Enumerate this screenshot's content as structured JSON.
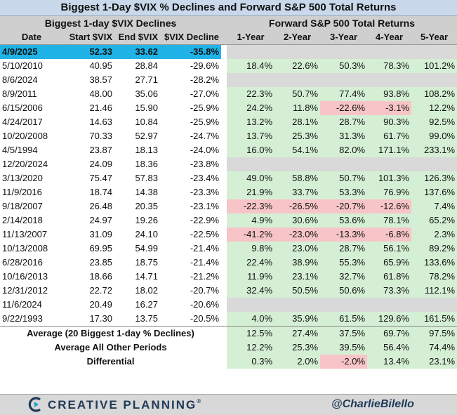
{
  "title": "Biggest 1-Day $VIX % Declines and Forward S&P 500 Total Returns",
  "left_header": "Biggest 1-day $VIX Declines",
  "right_header": "Forward S&P 500 Total Returns",
  "columns": [
    "Date",
    "Start $VIX",
    "End $VIX",
    "$VIX Decline",
    "1-Year",
    "2-Year",
    "3-Year",
    "4-Year",
    "5-Year"
  ],
  "colors": {
    "highlight": "#1fb3e8",
    "positive": "#d5efd4",
    "negative": "#f7c5c7",
    "empty": "#d9d9d9",
    "header": "#cfcfcf",
    "title_bg": "#c9d9eb",
    "brand": "#1f3a57"
  },
  "chart_data": {
    "type": "table",
    "title": "Biggest 1-Day $VIX % Declines and Forward S&P 500 Total Returns",
    "rows": [
      {
        "date": "4/9/2025",
        "start": "52.33",
        "end": "33.62",
        "decline": "-35.8%",
        "highlight": true,
        "returns": [
          "",
          "",
          "",
          "",
          ""
        ]
      },
      {
        "date": "5/10/2010",
        "start": "40.95",
        "end": "28.84",
        "decline": "-29.6%",
        "returns": [
          "18.4%",
          "22.6%",
          "50.3%",
          "78.3%",
          "101.2%"
        ]
      },
      {
        "date": "8/6/2024",
        "start": "38.57",
        "end": "27.71",
        "decline": "-28.2%",
        "returns": [
          "",
          "",
          "",
          "",
          ""
        ]
      },
      {
        "date": "8/9/2011",
        "start": "48.00",
        "end": "35.06",
        "decline": "-27.0%",
        "returns": [
          "22.3%",
          "50.7%",
          "77.4%",
          "93.8%",
          "108.2%"
        ]
      },
      {
        "date": "6/15/2006",
        "start": "21.46",
        "end": "15.90",
        "decline": "-25.9%",
        "returns": [
          "24.2%",
          "11.8%",
          "-22.6%",
          "-3.1%",
          "12.2%"
        ]
      },
      {
        "date": "4/24/2017",
        "start": "14.63",
        "end": "10.84",
        "decline": "-25.9%",
        "returns": [
          "13.2%",
          "28.1%",
          "28.7%",
          "90.3%",
          "92.5%"
        ]
      },
      {
        "date": "10/20/2008",
        "start": "70.33",
        "end": "52.97",
        "decline": "-24.7%",
        "returns": [
          "13.7%",
          "25.3%",
          "31.3%",
          "61.7%",
          "99.0%"
        ]
      },
      {
        "date": "4/5/1994",
        "start": "23.87",
        "end": "18.13",
        "decline": "-24.0%",
        "returns": [
          "16.0%",
          "54.1%",
          "82.0%",
          "171.1%",
          "233.1%"
        ]
      },
      {
        "date": "12/20/2024",
        "start": "24.09",
        "end": "18.36",
        "decline": "-23.8%",
        "returns": [
          "",
          "",
          "",
          "",
          ""
        ]
      },
      {
        "date": "3/13/2020",
        "start": "75.47",
        "end": "57.83",
        "decline": "-23.4%",
        "returns": [
          "49.0%",
          "58.8%",
          "50.7%",
          "101.3%",
          "126.3%"
        ]
      },
      {
        "date": "11/9/2016",
        "start": "18.74",
        "end": "14.38",
        "decline": "-23.3%",
        "returns": [
          "21.9%",
          "33.7%",
          "53.3%",
          "76.9%",
          "137.6%"
        ]
      },
      {
        "date": "9/18/2007",
        "start": "26.48",
        "end": "20.35",
        "decline": "-23.1%",
        "returns": [
          "-22.3%",
          "-26.5%",
          "-20.7%",
          "-12.6%",
          "7.4%"
        ]
      },
      {
        "date": "2/14/2018",
        "start": "24.97",
        "end": "19.26",
        "decline": "-22.9%",
        "returns": [
          "4.9%",
          "30.6%",
          "53.6%",
          "78.1%",
          "65.2%"
        ]
      },
      {
        "date": "11/13/2007",
        "start": "31.09",
        "end": "24.10",
        "decline": "-22.5%",
        "returns": [
          "-41.2%",
          "-23.0%",
          "-13.3%",
          "-6.8%",
          "2.3%"
        ]
      },
      {
        "date": "10/13/2008",
        "start": "69.95",
        "end": "54.99",
        "decline": "-21.4%",
        "returns": [
          "9.8%",
          "23.0%",
          "28.7%",
          "56.1%",
          "89.2%"
        ]
      },
      {
        "date": "6/28/2016",
        "start": "23.85",
        "end": "18.75",
        "decline": "-21.4%",
        "returns": [
          "22.4%",
          "38.9%",
          "55.3%",
          "65.9%",
          "133.6%"
        ]
      },
      {
        "date": "10/16/2013",
        "start": "18.66",
        "end": "14.71",
        "decline": "-21.2%",
        "returns": [
          "11.9%",
          "23.1%",
          "32.7%",
          "61.8%",
          "78.2%"
        ]
      },
      {
        "date": "12/31/2012",
        "start": "22.72",
        "end": "18.02",
        "decline": "-20.7%",
        "returns": [
          "32.4%",
          "50.5%",
          "50.6%",
          "73.3%",
          "112.1%"
        ]
      },
      {
        "date": "11/6/2024",
        "start": "20.49",
        "end": "16.27",
        "decline": "-20.6%",
        "returns": [
          "",
          "",
          "",
          "",
          ""
        ]
      },
      {
        "date": "9/22/1993",
        "start": "17.30",
        "end": "13.75",
        "decline": "-20.5%",
        "returns": [
          "4.0%",
          "35.9%",
          "61.5%",
          "129.6%",
          "161.5%"
        ]
      }
    ],
    "summary": [
      {
        "label": "Average (20 Biggest 1-day % Declines)",
        "returns": [
          "12.5%",
          "27.4%",
          "37.5%",
          "69.7%",
          "97.5%"
        ]
      },
      {
        "label": "Average All Other Periods",
        "returns": [
          "12.2%",
          "25.3%",
          "39.5%",
          "56.4%",
          "74.4%"
        ]
      },
      {
        "label": "Differential",
        "returns": [
          "0.3%",
          "2.0%",
          "-2.0%",
          "13.4%",
          "23.1%"
        ]
      }
    ]
  },
  "footer": {
    "brand": "CREATIVE PLANNING",
    "brand_mark": "®",
    "handle": "@CharlieBilello",
    "logo_icon": "creative-planning-logo-icon"
  }
}
